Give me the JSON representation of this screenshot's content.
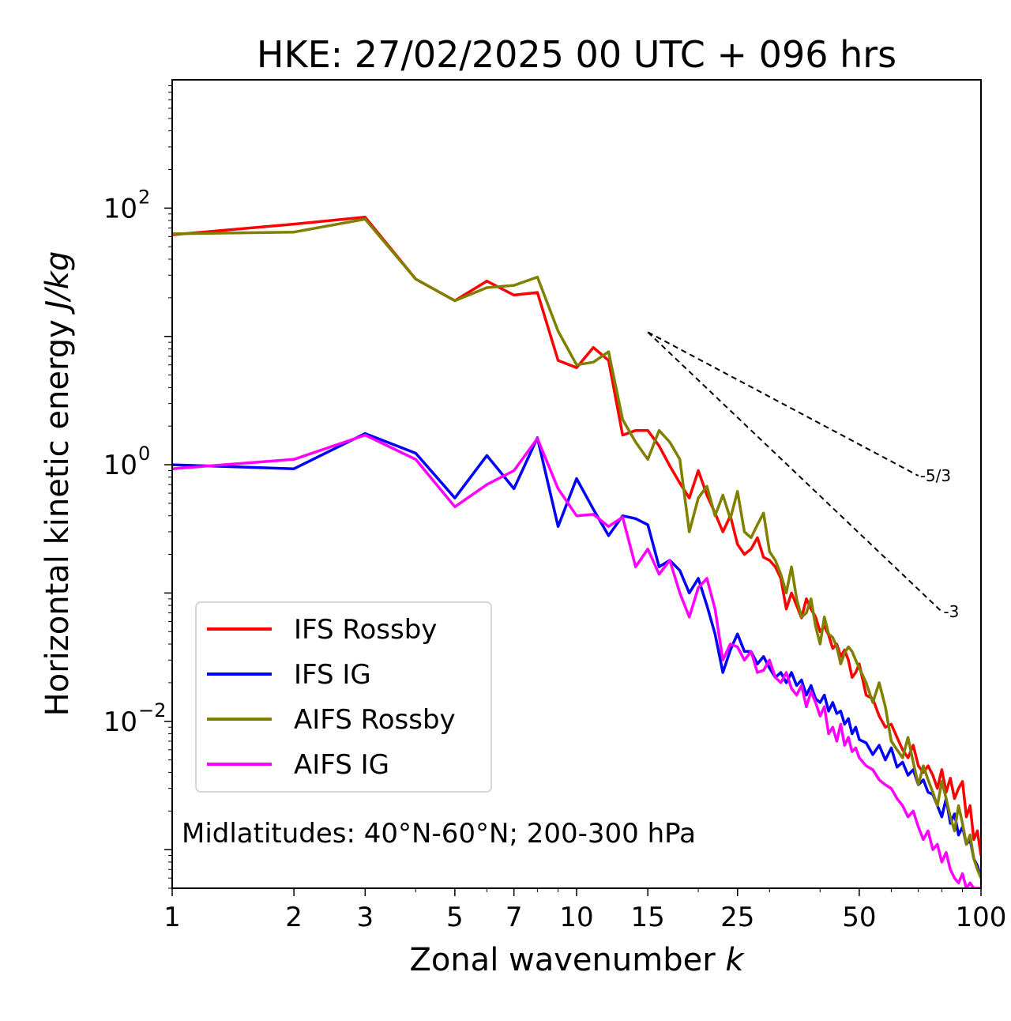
{
  "chart_data": {
    "type": "line",
    "title": "HKE: 27/02/2025 00 UTC + 096 hrs",
    "xlabel": "Zonal wavenumber",
    "xlabel_italic": "k",
    "ylabel": "Horizontal kinetic energy",
    "ylabel_italic": "J/kg",
    "xscale": "log",
    "yscale": "log",
    "xlim": [
      1,
      100
    ],
    "ylim": [
      0.0005,
      1000
    ],
    "x_ticks": [
      {
        "value": 1,
        "label": "1"
      },
      {
        "value": 2,
        "label": "2"
      },
      {
        "value": 3,
        "label": "3"
      },
      {
        "value": 5,
        "label": "5"
      },
      {
        "value": 7,
        "label": "7"
      },
      {
        "value": 10,
        "label": "10"
      },
      {
        "value": 15,
        "label": "15"
      },
      {
        "value": 25,
        "label": "25"
      },
      {
        "value": 50,
        "label": "50"
      },
      {
        "value": 100,
        "label": "100"
      }
    ],
    "y_ticks": [
      {
        "value": 0.01,
        "base": "10",
        "exp": "−2"
      },
      {
        "value": 1,
        "base": "10",
        "exp": "0"
      },
      {
        "value": 100,
        "base": "10",
        "exp": "2"
      }
    ],
    "annotation": "Midlatitudes: 40°N-60°N; 200-300 hPa",
    "legend_position": "lower-left",
    "grid": false,
    "reference_lines": [
      {
        "label": "-5/3",
        "x": [
          15,
          70
        ],
        "y": [
          10.8,
          0.82
        ]
      },
      {
        "label": "-3",
        "x": [
          15,
          80
        ],
        "y": [
          10.8,
          0.0715
        ]
      }
    ],
    "series": [
      {
        "name": "IFS Rossby",
        "color": "#ff0000",
        "x": [
          1,
          2,
          3,
          4,
          5,
          6,
          7,
          8,
          9,
          10,
          11,
          12,
          13,
          14,
          15,
          16,
          17,
          18,
          19,
          20,
          21,
          22,
          23,
          24,
          25,
          26,
          27,
          28,
          29,
          30,
          31,
          32,
          33,
          34,
          35,
          36,
          37,
          38,
          39,
          40,
          41,
          42,
          43,
          44,
          45,
          46,
          47,
          48,
          49,
          50,
          52,
          54,
          56,
          58,
          60,
          62,
          64,
          66,
          68,
          70,
          72,
          74,
          76,
          78,
          80,
          82,
          84,
          86,
          88,
          90,
          92,
          94,
          96,
          98,
          100
        ],
        "y": [
          62,
          75,
          85,
          28,
          19,
          27,
          21,
          22,
          6.5,
          5.7,
          8.2,
          6.5,
          1.7,
          1.85,
          1.85,
          1.4,
          0.98,
          0.72,
          0.55,
          0.9,
          0.58,
          0.42,
          0.3,
          0.4,
          0.24,
          0.2,
          0.22,
          0.27,
          0.19,
          0.18,
          0.16,
          0.13,
          0.075,
          0.1,
          0.08,
          0.064,
          0.09,
          0.075,
          0.065,
          0.05,
          0.055,
          0.047,
          0.037,
          0.04,
          0.032,
          0.036,
          0.03,
          0.022,
          0.024,
          0.028,
          0.016,
          0.015,
          0.011,
          0.009,
          0.0095,
          0.0075,
          0.006,
          0.0052,
          0.0065,
          0.0045,
          0.004,
          0.0045,
          0.0038,
          0.003,
          0.0042,
          0.0028,
          0.0036,
          0.0025,
          0.003,
          0.0034,
          0.0018,
          0.0022,
          0.0012,
          0.0014,
          0.0009
        ]
      },
      {
        "name": "IFS IG",
        "color": "#0000ff",
        "x": [
          1,
          2,
          3,
          4,
          5,
          6,
          7,
          8,
          9,
          10,
          11,
          12,
          13,
          14,
          15,
          16,
          17,
          18,
          19,
          20,
          21,
          22,
          23,
          24,
          25,
          26,
          27,
          28,
          29,
          30,
          31,
          32,
          33,
          34,
          35,
          36,
          37,
          38,
          39,
          40,
          41,
          42,
          43,
          44,
          45,
          46,
          47,
          48,
          49,
          50,
          52,
          54,
          56,
          58,
          60,
          62,
          64,
          66,
          68,
          70,
          72,
          74,
          76,
          78,
          80,
          82,
          84,
          86,
          88,
          90,
          92,
          94,
          96,
          98,
          100
        ],
        "y": [
          1.0,
          0.93,
          1.75,
          1.23,
          0.55,
          1.18,
          0.65,
          1.62,
          0.33,
          0.78,
          0.45,
          0.28,
          0.4,
          0.38,
          0.34,
          0.16,
          0.18,
          0.15,
          0.1,
          0.13,
          0.08,
          0.048,
          0.024,
          0.036,
          0.048,
          0.035,
          0.035,
          0.028,
          0.032,
          0.026,
          0.022,
          0.024,
          0.02,
          0.024,
          0.019,
          0.021,
          0.016,
          0.019,
          0.015,
          0.014,
          0.016,
          0.012,
          0.014,
          0.0115,
          0.012,
          0.0095,
          0.0105,
          0.008,
          0.009,
          0.0072,
          0.0068,
          0.0055,
          0.0065,
          0.005,
          0.0062,
          0.0044,
          0.0048,
          0.0038,
          0.0042,
          0.0032,
          0.0035,
          0.0028,
          0.0027,
          0.0022,
          0.0018,
          0.0025,
          0.0016,
          0.0019,
          0.0013,
          0.0015,
          0.0011,
          0.0012,
          0.00085,
          0.00075,
          0.0006
        ]
      },
      {
        "name": "AIFS Rossby",
        "color": "#808000",
        "x": [
          1,
          2,
          3,
          4,
          5,
          6,
          7,
          8,
          9,
          10,
          11,
          12,
          13,
          14,
          15,
          16,
          17,
          18,
          19,
          20,
          21,
          22,
          23,
          24,
          25,
          26,
          27,
          28,
          29,
          30,
          31,
          32,
          33,
          34,
          35,
          36,
          37,
          38,
          39,
          40,
          41,
          42,
          43,
          44,
          45,
          46,
          47,
          48,
          49,
          50,
          52,
          54,
          56,
          58,
          60,
          62,
          64,
          66,
          68,
          70,
          72,
          74,
          76,
          78,
          80,
          82,
          84,
          86,
          88,
          90,
          92,
          94,
          96,
          98,
          100
        ],
        "y": [
          63,
          65,
          82,
          28,
          19,
          24,
          25,
          29,
          11,
          6.0,
          6.3,
          7.6,
          2.25,
          1.5,
          1.1,
          1.85,
          1.5,
          1.1,
          0.3,
          0.55,
          0.68,
          0.4,
          0.58,
          0.38,
          0.62,
          0.3,
          0.27,
          0.34,
          0.42,
          0.21,
          0.18,
          0.14,
          0.1,
          0.16,
          0.09,
          0.065,
          0.07,
          0.09,
          0.055,
          0.04,
          0.065,
          0.048,
          0.045,
          0.038,
          0.028,
          0.034,
          0.038,
          0.035,
          0.03,
          0.026,
          0.02,
          0.014,
          0.02,
          0.013,
          0.007,
          0.006,
          0.0052,
          0.0075,
          0.0048,
          0.0032,
          0.0045,
          0.0035,
          0.0028,
          0.0022,
          0.0034,
          0.0025,
          0.0018,
          0.0014,
          0.0022,
          0.0016,
          0.0011,
          0.0013,
          0.00085,
          0.0007,
          0.0006
        ]
      },
      {
        "name": "AIFS IG",
        "color": "#ff00ff",
        "x": [
          1,
          2,
          3,
          4,
          5,
          6,
          7,
          8,
          9,
          10,
          11,
          12,
          13,
          14,
          15,
          16,
          17,
          18,
          19,
          20,
          21,
          22,
          23,
          24,
          25,
          26,
          27,
          28,
          29,
          30,
          31,
          32,
          33,
          34,
          35,
          36,
          37,
          38,
          39,
          40,
          41,
          42,
          43,
          44,
          45,
          46,
          47,
          48,
          49,
          50,
          52,
          54,
          56,
          58,
          60,
          62,
          64,
          66,
          68,
          70,
          72,
          74,
          76,
          78,
          80,
          82,
          84,
          86,
          88,
          90,
          92,
          94,
          96,
          98,
          100
        ],
        "y": [
          0.93,
          1.1,
          1.7,
          1.1,
          0.47,
          0.7,
          0.9,
          1.6,
          0.65,
          0.4,
          0.41,
          0.33,
          0.39,
          0.16,
          0.22,
          0.14,
          0.18,
          0.1,
          0.065,
          0.11,
          0.13,
          0.075,
          0.03,
          0.04,
          0.038,
          0.03,
          0.035,
          0.024,
          0.025,
          0.03,
          0.022,
          0.02,
          0.024,
          0.018,
          0.016,
          0.019,
          0.013,
          0.017,
          0.014,
          0.011,
          0.013,
          0.008,
          0.009,
          0.007,
          0.0095,
          0.0065,
          0.0075,
          0.0058,
          0.0062,
          0.0052,
          0.0045,
          0.0042,
          0.0035,
          0.0032,
          0.003,
          0.0025,
          0.0022,
          0.0018,
          0.002,
          0.0015,
          0.0012,
          0.0014,
          0.001,
          0.0011,
          0.0008,
          0.00095,
          0.0007,
          0.0006,
          0.00055,
          0.00065,
          0.0005,
          0.00055,
          0.0005,
          0.0005,
          0.0005
        ]
      }
    ]
  }
}
